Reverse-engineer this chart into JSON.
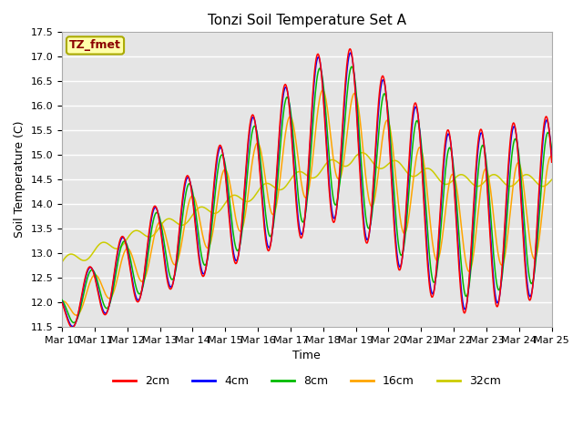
{
  "title": "Tonzi Soil Temperature Set A",
  "xlabel": "Time",
  "ylabel": "Soil Temperature (C)",
  "ylim": [
    11.5,
    17.5
  ],
  "yticks": [
    11.5,
    12.0,
    12.5,
    13.0,
    13.5,
    14.0,
    14.5,
    15.0,
    15.5,
    16.0,
    16.5,
    17.0,
    17.5
  ],
  "colors": {
    "2cm": "#FF0000",
    "4cm": "#0000FF",
    "8cm": "#00BB00",
    "16cm": "#FFA500",
    "32cm": "#CCCC00"
  },
  "legend_label": "TZ_fmet",
  "legend_box_color": "#FFFFAA",
  "legend_border_color": "#AAAA00",
  "background_color": "#E5E5E5",
  "grid_color": "#FFFFFF",
  "x_labels": [
    "Mar 10",
    "Mar 11",
    "Mar 12",
    "Mar 13",
    "Mar 14",
    "Mar 15",
    "Mar 16",
    "Mar 17",
    "Mar 18",
    "Mar 19",
    "Mar 20",
    "Mar 21",
    "Mar 22",
    "Mar 23",
    "Mar 24",
    "Mar 25"
  ]
}
